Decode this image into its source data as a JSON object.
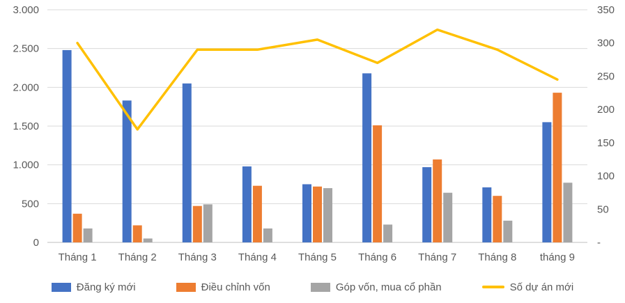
{
  "chart_data": {
    "type": "bar",
    "subtype": "combo-clustered-bar-with-line",
    "title": "",
    "categories": [
      "Tháng 1",
      "Tháng 2",
      "Tháng 3",
      "Tháng 4",
      "Tháng 5",
      "Tháng 6",
      "Tháng 7",
      "Tháng 8",
      "tháng 9"
    ],
    "bar_series": [
      {
        "name": "Đăng ký mới",
        "color": "#4472C4",
        "axis": "left",
        "values": [
          2480,
          1830,
          2050,
          980,
          750,
          2180,
          970,
          710,
          1550
        ]
      },
      {
        "name": "Điều chỉnh vốn",
        "color": "#ED7D31",
        "axis": "left",
        "values": [
          370,
          220,
          470,
          730,
          720,
          1510,
          1070,
          600,
          1930
        ]
      },
      {
        "name": "Góp vốn, mua cổ phần",
        "color": "#A5A5A5",
        "axis": "left",
        "values": [
          180,
          50,
          490,
          180,
          700,
          230,
          640,
          280,
          770
        ]
      }
    ],
    "line_series": {
      "name": "Số dự án mới",
      "color": "#FFC000",
      "axis": "right",
      "values": [
        300,
        170,
        290,
        290,
        305,
        270,
        320,
        290,
        245
      ]
    },
    "left_axis": {
      "min": 0,
      "max": 3000,
      "tick_values": [
        0,
        500,
        1000,
        1500,
        2000,
        2500,
        3000
      ],
      "tick_labels": [
        "0",
        "500",
        "1.000",
        "1.500",
        "2.000",
        "2.500",
        "3.000"
      ]
    },
    "right_axis": {
      "min": 0,
      "max": 350,
      "tick_values": [
        0,
        50,
        100,
        150,
        200,
        250,
        300,
        350
      ],
      "tick_labels": [
        "-",
        "50",
        "100",
        "150",
        "200",
        "250",
        "300",
        "350"
      ]
    },
    "grid": true,
    "legend_position": "bottom"
  },
  "styles": {
    "grid_color": "#D9D9D9",
    "baseline_color": "#BFBFBF",
    "axis_text_color": "#595959",
    "background": "#FFFFFF"
  }
}
